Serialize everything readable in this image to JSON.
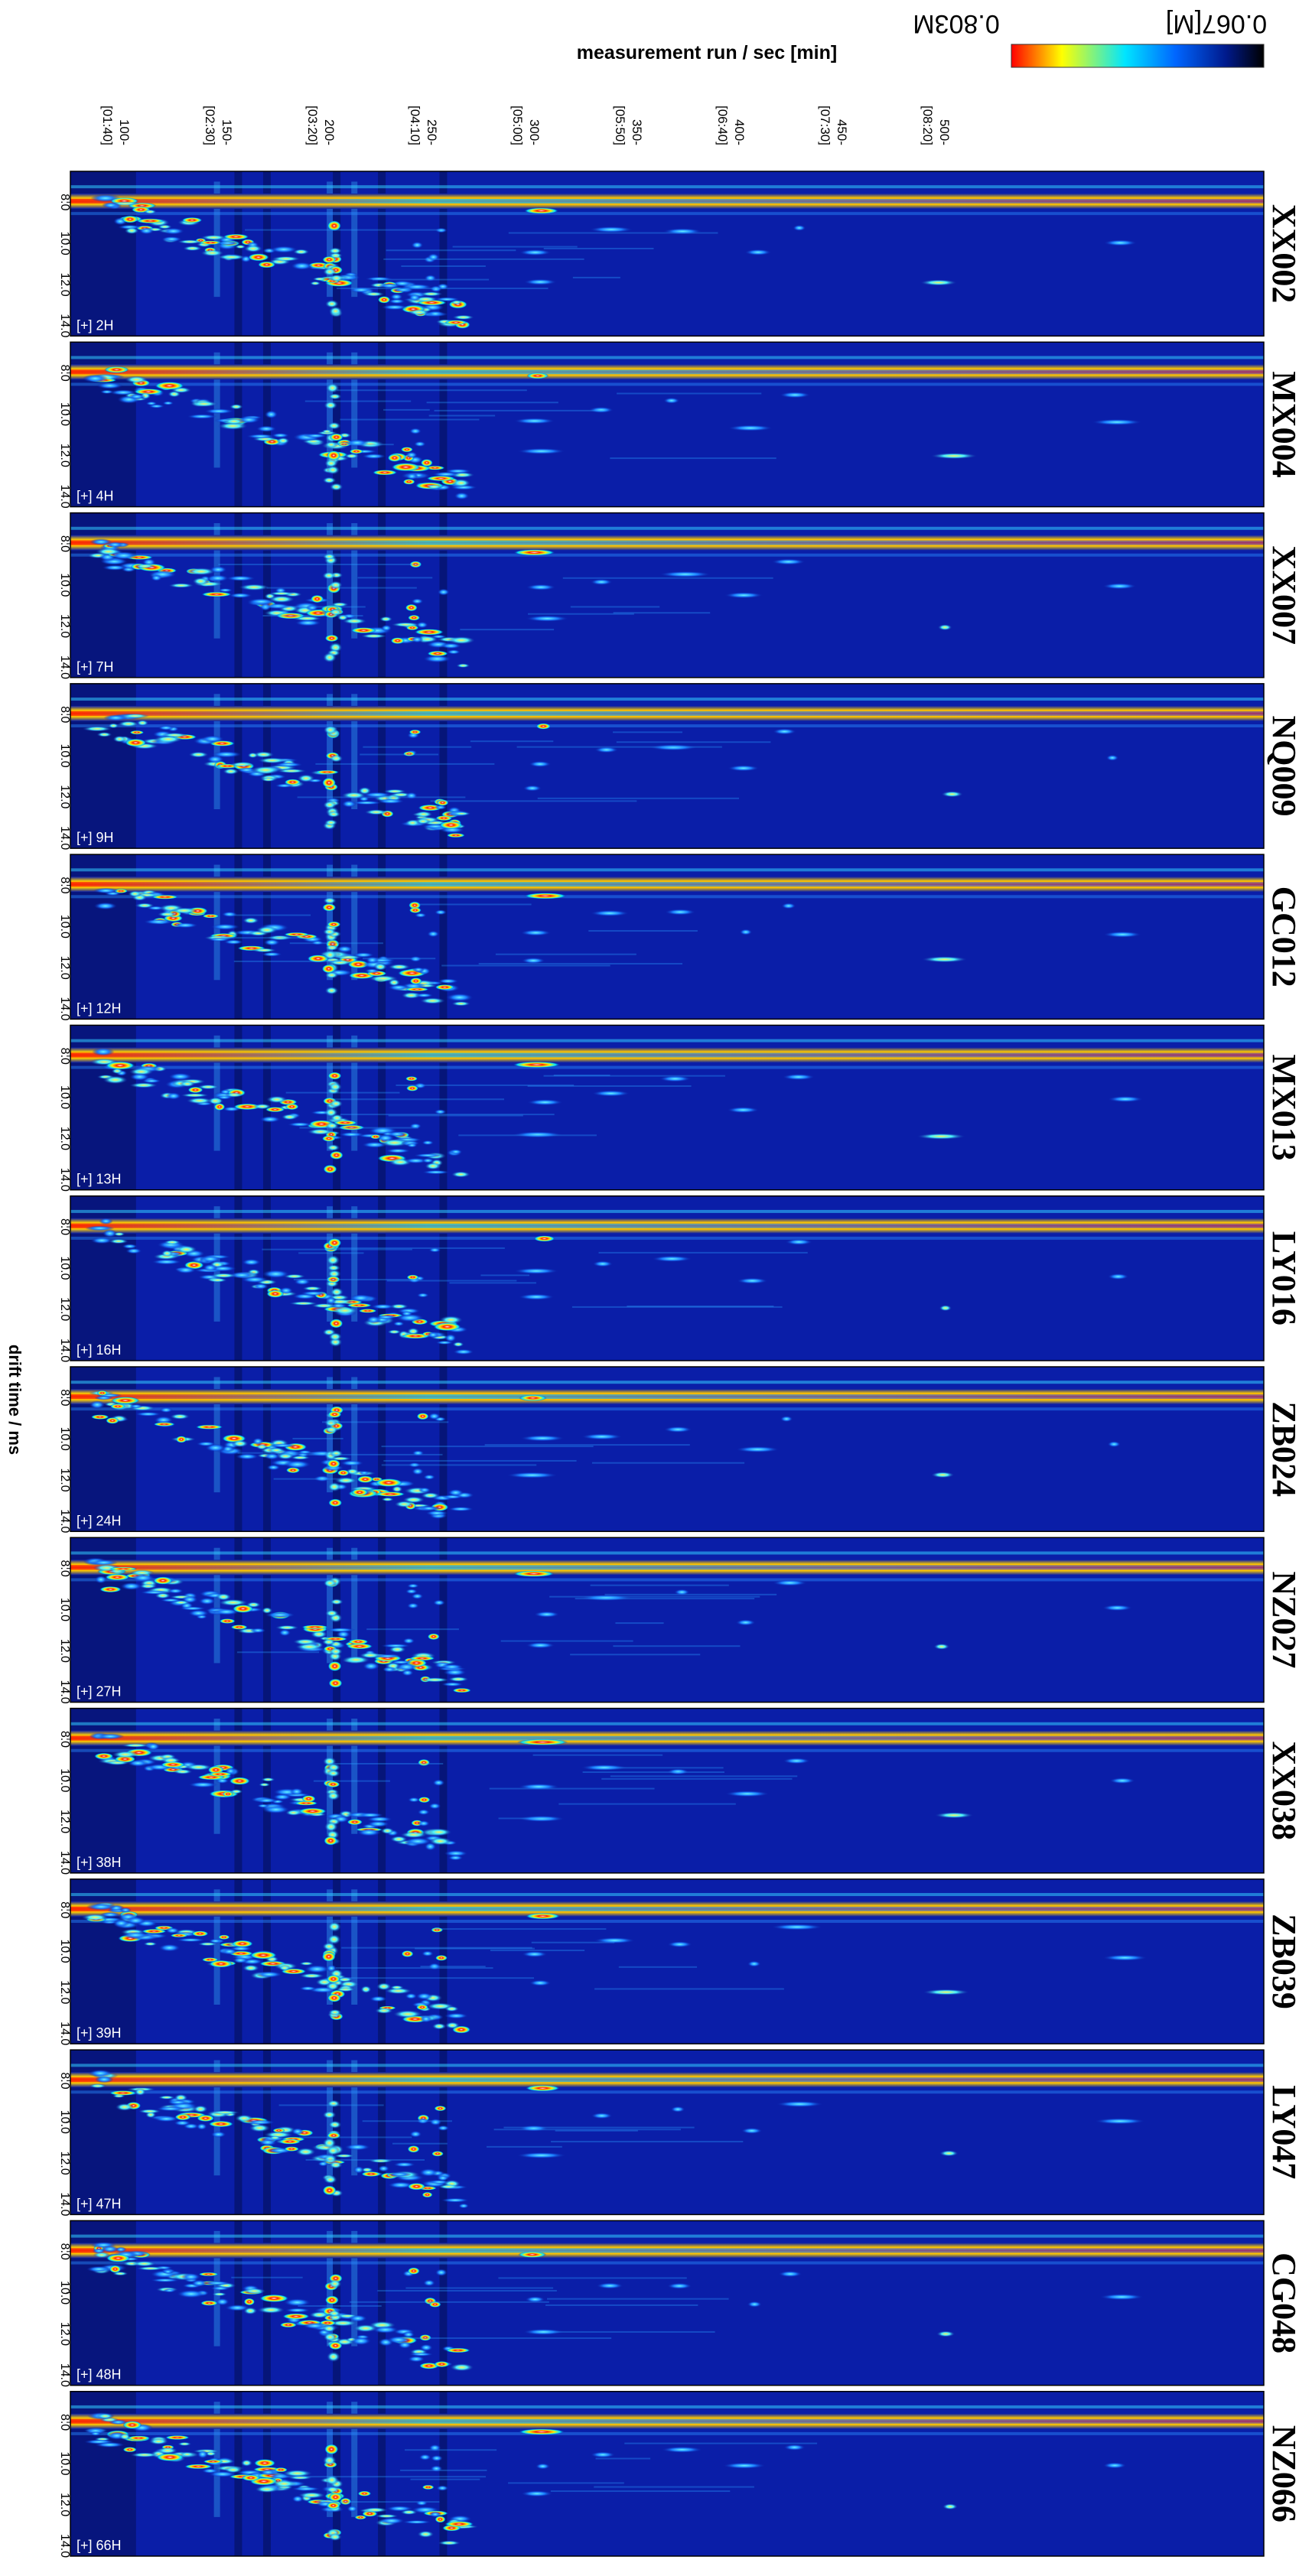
{
  "chart_data": {
    "type": "heatmap",
    "title": "measurement run / sec [min]",
    "ylabel": "drift time / ms",
    "x_ticks": [
      "100-",
      "150-",
      "200-",
      "250-",
      "300-",
      "350-",
      "400-",
      "450-",
      "500-"
    ],
    "x_tick_minutes": [
      "[01:40]",
      "[02:30]",
      "[03:20]",
      "[04:10]",
      "[05:00]",
      "[05:50]",
      "[06:40]",
      "[07:30]",
      "[08:20]"
    ],
    "y_ticks": [
      "8.0",
      "10.0",
      "12.0",
      "14.0"
    ],
    "colorbar": {
      "max_label": "0.803M",
      "min_label": "0.067[M]",
      "colors": [
        "#ff0000",
        "#ffff00",
        "#00e5ff",
        "#0066ff",
        "#001a8c",
        "#000000"
      ]
    },
    "background_color": "#0a1ea8",
    "samples": [
      {
        "name": "XX002",
        "tag": "[+] 2H"
      },
      {
        "name": "MX004",
        "tag": "[+] 4H"
      },
      {
        "name": "XX007",
        "tag": "[+] 7H"
      },
      {
        "name": "NQ009",
        "tag": "[+] 9H"
      },
      {
        "name": "GC012",
        "tag": "[+] 12H"
      },
      {
        "name": "MX013",
        "tag": "[+] 13H"
      },
      {
        "name": "LY016",
        "tag": "[+] 16H"
      },
      {
        "name": "ZB024",
        "tag": "[+] 24H"
      },
      {
        "name": "NZ027",
        "tag": "[+] 27H"
      },
      {
        "name": "XX038",
        "tag": "[+] 38H"
      },
      {
        "name": "ZB039",
        "tag": "[+] 39H"
      },
      {
        "name": "LY047",
        "tag": "[+] 47H"
      },
      {
        "name": "CG048",
        "tag": "[+] 48H"
      },
      {
        "name": "NZ066",
        "tag": "[+] 66H"
      }
    ],
    "x_range_sec": [
      78,
      660
    ],
    "y_range_ms": [
      6.5,
      14.5
    ]
  }
}
